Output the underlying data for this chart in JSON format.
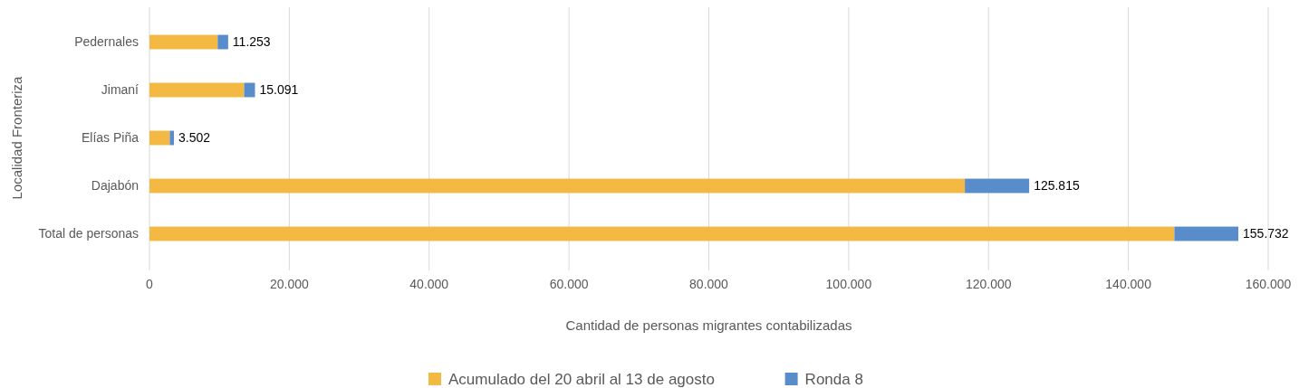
{
  "chart_data": {
    "type": "bar",
    "orientation": "horizontal",
    "stacked": true,
    "xlabel": "Cantidad de personas migrantes contabilizadas",
    "ylabel": "Localidad Fronteriza",
    "categories": [
      "Pedernales",
      "Jimaní",
      "Elías Piña",
      "Dajabón",
      "Total de personas"
    ],
    "series": [
      {
        "name": "Acumulado del 20 abril al 13 de agosto",
        "color": "#f4b942",
        "values": [
          9753,
          13541,
          2902,
          116615,
          146582
        ]
      },
      {
        "name": "Ronda 8",
        "color": "#588ccb",
        "values": [
          1500,
          1550,
          600,
          9200,
          9150
        ]
      }
    ],
    "totals": [
      "11.253",
      "15.091",
      "3.502",
      "125.815",
      "155.732"
    ],
    "xlim": [
      0,
      160000
    ],
    "xticks": [
      {
        "value": 0,
        "label": "0"
      },
      {
        "value": 20000,
        "label": "20.000"
      },
      {
        "value": 40000,
        "label": "40.000"
      },
      {
        "value": 60000,
        "label": "60.000"
      },
      {
        "value": 80000,
        "label": "80.000"
      },
      {
        "value": 100000,
        "label": "100.000"
      },
      {
        "value": 120000,
        "label": "120.000"
      },
      {
        "value": 140000,
        "label": "140.000"
      },
      {
        "value": 160000,
        "label": "160.000"
      }
    ],
    "grid": "x",
    "legend": "bottom"
  }
}
